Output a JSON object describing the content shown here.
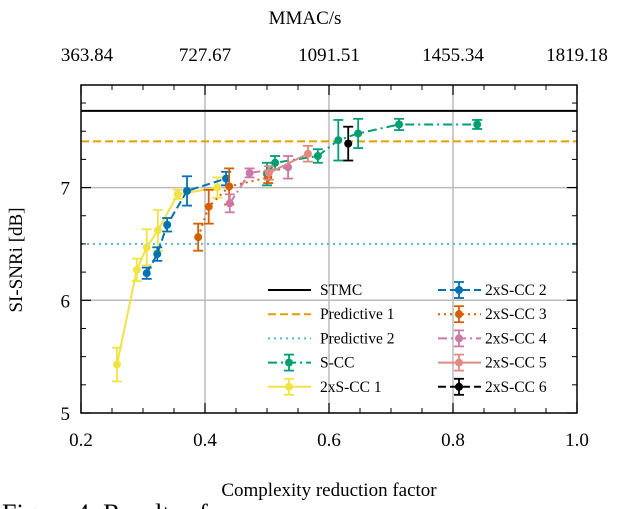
{
  "chart_data": {
    "type": "line",
    "xlabel": "Complexity reduction factor",
    "ylabel": "SI-SNRi [dB]",
    "top_xlabel": "MMAC/s",
    "xlim": [
      0.2,
      1.0
    ],
    "ylim": [
      5,
      7.91
    ],
    "xticks": [
      "0.2",
      "0.4",
      "0.6",
      "0.8",
      "1.0"
    ],
    "xtick_values": [
      0.2,
      0.4,
      0.6,
      0.8,
      1.0
    ],
    "yticks": [
      "5",
      "6",
      "7"
    ],
    "ytick_values": [
      5,
      6,
      7
    ],
    "top_xticks": [
      "363.84",
      "727.67",
      "1091.51",
      "1455.34",
      "1819.18"
    ],
    "grid": true,
    "legend_placement": "bottom-right",
    "series": [
      {
        "name": "STMC",
        "color": "#000000",
        "dash": "solid",
        "marker": false,
        "hline": 7.68
      },
      {
        "name": "Predictive 1",
        "color": "#E69F00",
        "dash": "dashed",
        "marker": false,
        "hline": 7.41
      },
      {
        "name": "Predictive 2",
        "color": "#56B4E9",
        "dash": "dotted",
        "marker": false,
        "hline": 6.5
      },
      {
        "name": "S-CC",
        "color": "#009E73",
        "dash": "dashdot",
        "marker": true,
        "x": [
          0.5,
          0.513,
          0.582,
          0.615,
          0.647,
          0.713,
          0.839
        ],
        "y": [
          7.12,
          7.22,
          7.28,
          7.42,
          7.48,
          7.56,
          7.56
        ],
        "err": [
          0.1,
          0.06,
          0.06,
          0.18,
          0.13,
          0.05,
          0.04
        ]
      },
      {
        "name": "2xS-CC 1",
        "color": "#F0E442",
        "dash": "solid",
        "marker": true,
        "x": [
          0.258,
          0.29,
          0.306,
          0.324,
          0.356,
          0.42
        ],
        "y": [
          5.43,
          6.27,
          6.47,
          6.62,
          6.94,
          7.0
        ],
        "err": [
          0.15,
          0.1,
          0.16,
          0.18,
          0.04,
          0.09
        ]
      },
      {
        "name": "2xS-CC 2",
        "color": "#0072B2",
        "dash": "dashed",
        "marker": true,
        "x": [
          0.306,
          0.323,
          0.339,
          0.371,
          0.434
        ],
        "y": [
          6.24,
          6.41,
          6.67,
          6.97,
          7.08
        ],
        "err": [
          0.05,
          0.06,
          0.06,
          0.13,
          0.06
        ]
      },
      {
        "name": "2xS-CC 3",
        "color": "#D55E00",
        "dash": "dotted",
        "marker": true,
        "x": [
          0.389,
          0.406,
          0.439,
          0.502
        ],
        "y": [
          6.56,
          6.83,
          7.01,
          7.09
        ],
        "err": [
          0.12,
          0.15,
          0.16,
          0.05
        ]
      },
      {
        "name": "2xS-CC 4",
        "color": "#CC79A7",
        "dash": "dashdot",
        "marker": true,
        "x": [
          0.44,
          0.472,
          0.534
        ],
        "y": [
          6.86,
          7.13,
          7.18
        ],
        "err": [
          0.08,
          0.04,
          0.1
        ]
      },
      {
        "name": "2xS-CC 5",
        "color": "#E08A80",
        "dash": "solid",
        "marker": true,
        "x": [
          0.503,
          0.566
        ],
        "y": [
          7.13,
          7.3
        ],
        "err": [
          0.06,
          0.07
        ]
      },
      {
        "name": "2xS-CC 6",
        "color": "#000000",
        "dash": "dashed",
        "marker": true,
        "x": [
          0.631
        ],
        "y": [
          7.39
        ],
        "err": [
          0.15
        ]
      }
    ]
  },
  "caption": "Figure 4: Results of"
}
